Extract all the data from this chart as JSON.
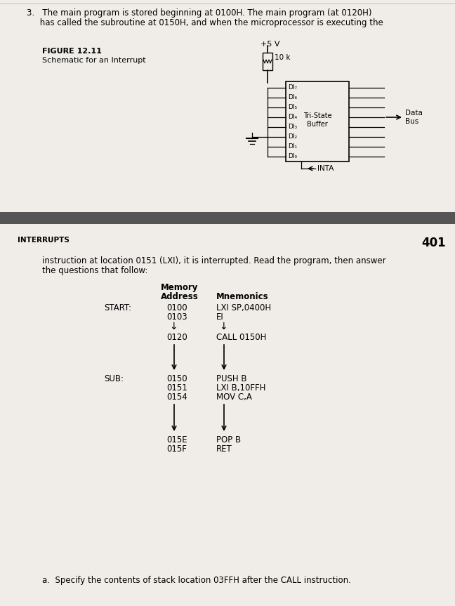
{
  "bg_color": "#f0ede8",
  "text_color": "#000000",
  "top_text_line1": "3.   The main program is stored beginning at 0100H. The main program (at 0120H)",
  "top_text_line2": "     has called the subroutine at 0150H, and when the microprocessor is executing the",
  "figure_label": "FIGURE 12.11",
  "figure_caption": "Schematic for an Interrupt",
  "vcc_label": "+5 V",
  "resistor_label": "10 k",
  "di_labels": [
    "DI₇",
    "DI₆",
    "DI₅",
    "DI₄",
    "DI₃",
    "DI₂",
    "DI₁",
    "DI₀"
  ],
  "buffer_label1": "Tri-State",
  "buffer_label2": "Buffer",
  "data_bus_label1": "Data",
  "data_bus_label2": "Bus",
  "inta_label": "INTA",
  "section_header": "INTERRUPTS",
  "page_number": "401",
  "body_text_line1": "instruction at location 0151 (LXI), it is interrupted. Read the program, then answer",
  "body_text_line2": "the questions that follow:",
  "col_header1": "Memory",
  "col_header2": "Address",
  "col_header3": "Mnemonics",
  "question_text": "a.  Specify the contents of stack location 03FFH after the CALL instruction."
}
